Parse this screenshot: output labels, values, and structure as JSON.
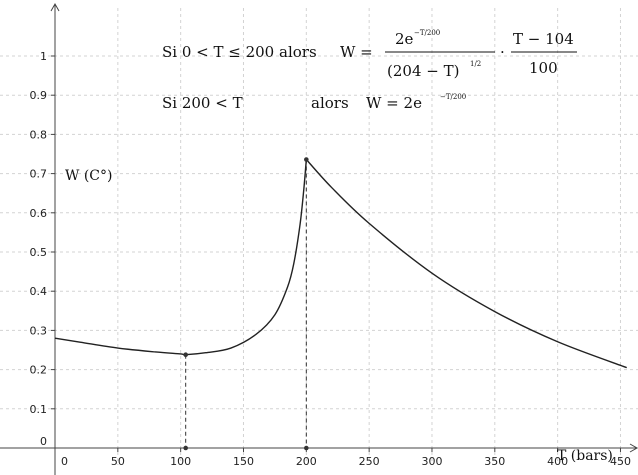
{
  "chart_data": {
    "type": "line",
    "xlabel": "T (bars)",
    "ylabel": "W (C°)",
    "xlim": [
      -8,
      455
    ],
    "ylim": [
      -0.03,
      1.1
    ],
    "xticks": [
      0,
      50,
      100,
      150,
      200,
      250,
      300,
      350,
      400,
      450
    ],
    "xtick_labels": [
      "0",
      "50",
      "100",
      "150",
      "200",
      "250",
      "300",
      "350",
      "400",
      "450"
    ],
    "yticks": [
      0,
      0.1,
      0.2,
      0.3,
      0.4,
      0.5,
      0.6,
      0.7,
      0.8,
      0.9,
      1
    ],
    "ytick_labels": [
      "0",
      "0.1",
      "0.2",
      "0.3",
      "0.4",
      "0.5",
      "0.6",
      "0.7",
      "0.8",
      "0.9",
      "1"
    ],
    "grid": true,
    "series": [
      {
        "x": [
          0,
          20,
          50,
          80,
          100,
          104,
          120,
          140,
          160,
          175,
          185,
          190,
          195,
          198,
          200,
          220,
          250,
          300,
          350,
          400,
          455
        ],
        "values": [
          0.28,
          0.27,
          0.255,
          0.245,
          0.24,
          0.238,
          0.243,
          0.255,
          0.29,
          0.34,
          0.41,
          0.47,
          0.57,
          0.66,
          0.736,
          0.665,
          0.573,
          0.446,
          0.348,
          0.271,
          0.205
        ]
      }
    ],
    "marked_points": [
      {
        "x": 104,
        "y": 0.238
      },
      {
        "x": 104,
        "y": 0
      },
      {
        "x": 200,
        "y": 0.736
      },
      {
        "x": 200,
        "y": 0
      }
    ],
    "annotations": {
      "line1_cond": "Si   0 < T ≤ 200   alors",
      "line1_lhs": "W =",
      "line1_num": "2e",
      "line1_num_exp": "−T/200",
      "line1_den": "(204 − T)",
      "line1_den_exp": "1/2",
      "line1_times": "·",
      "line1_num2": "T − 104",
      "line1_den2": "100",
      "line2_cond": "Si   200 < T",
      "line2_alors": "alors",
      "line2_lhs": "W = 2e",
      "line2_exp": "−T/200"
    }
  }
}
